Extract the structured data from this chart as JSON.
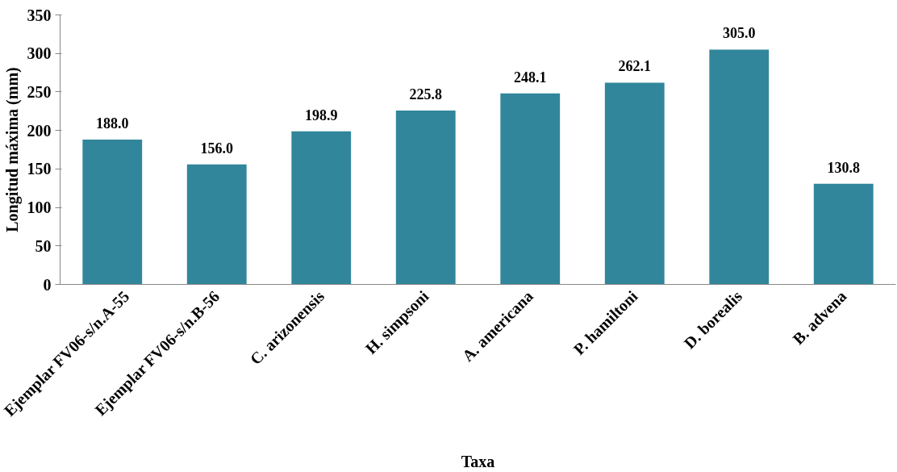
{
  "chart_data": {
    "type": "bar",
    "xlabel": "Taxa",
    "ylabel": "Longitud máxima (mm)",
    "categories": [
      "Ejemplar FV06-s/n.A-55",
      "Ejemplar FV06-s/n.B-56",
      "C. arizonensis",
      "H. simpsoni",
      "A. americana",
      "P. hamiltoni",
      "D. borealis",
      "B. advena"
    ],
    "values": [
      188.0,
      156.0,
      198.9,
      225.8,
      248.1,
      262.1,
      305.0,
      130.8
    ],
    "value_labels": [
      "188.0",
      "156.0",
      "198.9",
      "225.8",
      "248.1",
      "262.1",
      "305.0",
      "130.8"
    ],
    "color": "#31869b",
    "ylim": [
      0,
      350
    ],
    "yticks": [
      0,
      50,
      100,
      150,
      200,
      250,
      300,
      350
    ],
    "grid": false
  }
}
